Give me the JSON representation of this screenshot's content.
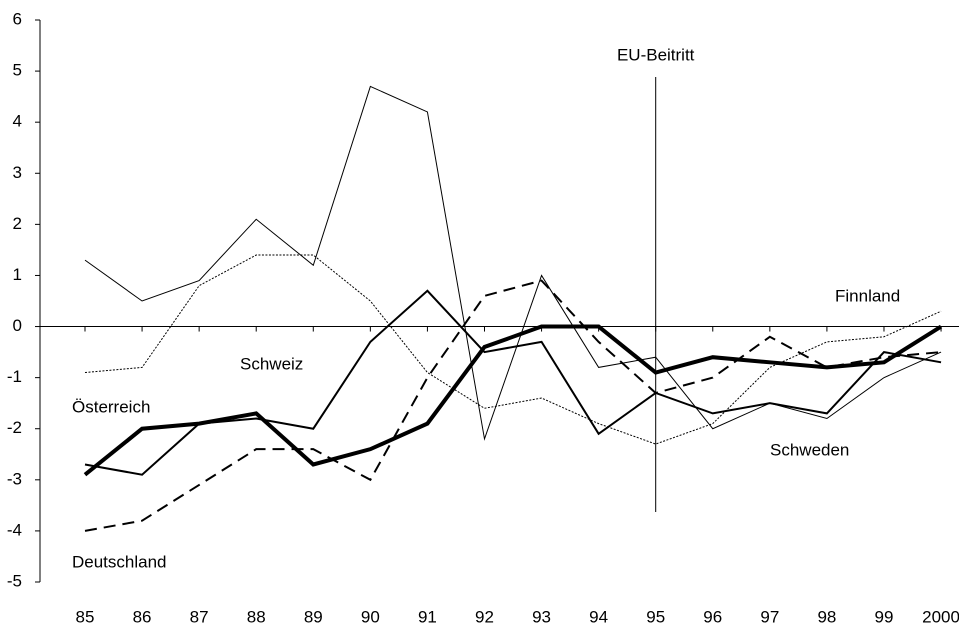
{
  "chart_data": {
    "type": "line",
    "categories": [
      "85",
      "86",
      "87",
      "88",
      "89",
      "90",
      "91",
      "92",
      "93",
      "94",
      "95",
      "96",
      "97",
      "98",
      "99",
      "2000"
    ],
    "ylim": [
      -5,
      6
    ],
    "yticks": [
      -5,
      -4,
      -3,
      -2,
      -1,
      0,
      1,
      2,
      3,
      4,
      5,
      6
    ],
    "series": [
      {
        "name": "Österreich",
        "color": "#000000",
        "width": 4,
        "dash": "none",
        "values": [
          -2.9,
          -2.0,
          -1.9,
          -1.7,
          -2.7,
          -2.4,
          -1.9,
          -0.4,
          0,
          0,
          -0.9,
          -0.6,
          -0.7,
          -0.8,
          -0.7,
          0
        ]
      },
      {
        "name": "Deutschland",
        "color": "#000000",
        "width": 2,
        "dash": "12 7",
        "values": [
          -4.0,
          -3.8,
          -3.1,
          -2.4,
          -2.4,
          -3.0,
          -1.0,
          0.6,
          0.9,
          -0.3,
          -1.3,
          -1.0,
          -0.2,
          -0.8,
          -0.6,
          -0.5
        ]
      },
      {
        "name": "Schweiz",
        "color": "#000000",
        "width": 2,
        "dash": "none",
        "values": [
          -2.7,
          -2.9,
          -1.9,
          -1.8,
          -2.0,
          -0.3,
          0.7,
          -0.5,
          -0.3,
          -2.1,
          -1.3,
          -1.7,
          -1.5,
          -1.7,
          -0.5,
          -0.7
        ]
      },
      {
        "name": "Schweden",
        "color": "#000000",
        "width": 1,
        "dash": "none",
        "values": [
          1.3,
          0.5,
          0.9,
          2.1,
          1.2,
          4.7,
          4.2,
          -2.2,
          1.0,
          -0.8,
          -0.6,
          -2.0,
          -1.5,
          -1.8,
          -1.0,
          -0.5
        ]
      },
      {
        "name": "Finnland",
        "color": "#000000",
        "width": 1,
        "dash": "2 1.5",
        "values": [
          -0.9,
          -0.8,
          0.8,
          1.4,
          1.4,
          0.5,
          -0.9,
          -1.6,
          -1.4,
          -1.9,
          -2.3,
          -1.9,
          -0.8,
          -0.3,
          -0.2,
          0.3
        ]
      }
    ],
    "annotation": "EU-Beitritt"
  }
}
